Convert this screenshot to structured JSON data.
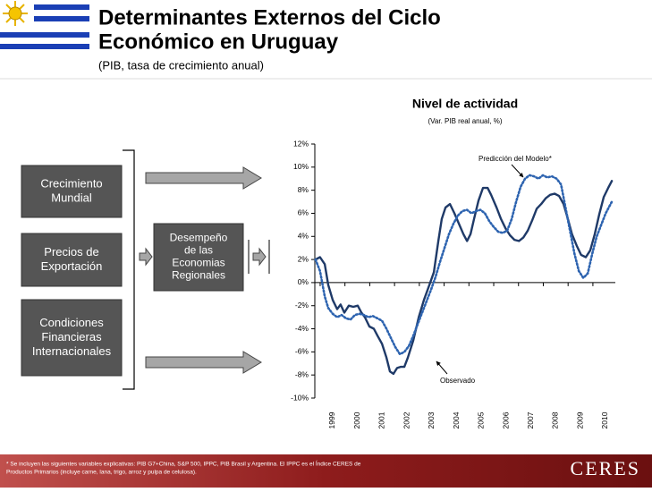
{
  "header": {
    "title_lines": [
      "Determinantes Externos del Ciclo",
      "Económico en Uruguay"
    ],
    "subtitle": "(PIB, tasa de crecimiento anual)"
  },
  "diagram": {
    "boxes": [
      [
        "Crecimiento",
        "Mundial"
      ],
      [
        "Precios de",
        "Exportación"
      ],
      [
        "Condiciones",
        "Financieras",
        "Internacionales"
      ]
    ],
    "center": [
      "Desempeño",
      "de las",
      "Economias",
      "Regionales"
    ]
  },
  "footer": {
    "footnote_lines": [
      "* Se incluyen las siguientes variables explicativas: PIB G7+China, S&P 500, IPPC, PIB Brasil y Argentina. El IPPC es el Índice CERES de",
      "Productos Primarios (incluye carne, lana, trigo, arroz y pulpa de celulosa)."
    ],
    "logo": "CERES"
  },
  "chart_data": {
    "type": "line",
    "title": "Nivel de actividad",
    "subtitle": "(Var. PIB real anual, %)",
    "xlim": [
      1998.28,
      2010.4
    ],
    "xticks": [
      1999,
      2000,
      2001,
      2002,
      2003,
      2004,
      2005,
      2006,
      2007,
      2008,
      2009,
      2010
    ],
    "ylim": [
      -10,
      12
    ],
    "yticks": [
      {
        "value": -10,
        "label": "-10%"
      },
      {
        "value": -8,
        "label": "-8%"
      },
      {
        "value": -6,
        "label": "-6%"
      },
      {
        "value": -4,
        "label": "-4%"
      },
      {
        "value": -2,
        "label": "-2%"
      },
      {
        "value": 0,
        "label": "0%"
      },
      {
        "value": 2,
        "label": "2%"
      },
      {
        "value": 4,
        "label": "4%"
      },
      {
        "value": 6,
        "label": "6%"
      },
      {
        "value": 8,
        "label": "8%"
      },
      {
        "value": 10,
        "label": "10%"
      },
      {
        "value": 12,
        "label": "12%"
      }
    ],
    "annotations": [
      "Predicción del Modelo*",
      "Observado"
    ],
    "series": [
      {
        "name": "Observado",
        "color": "#1f3a68",
        "line_style": "solid",
        "x": [
          1998.31,
          1998.49,
          1998.68,
          1998.82,
          1999.0,
          1999.18,
          1999.32,
          1999.47,
          1999.65,
          1999.83,
          2000.01,
          2000.16,
          2000.3,
          2000.48,
          2000.66,
          2000.81,
          2000.99,
          2001.17,
          2001.31,
          2001.45,
          2001.6,
          2001.74,
          2001.89,
          2002.03,
          2002.25,
          2002.47,
          2002.68,
          2002.9,
          2003.08,
          2003.26,
          2003.4,
          2003.55,
          2003.73,
          2003.91,
          2004.09,
          2004.27,
          2004.42,
          2004.56,
          2004.7,
          2004.88,
          2005.06,
          2005.25,
          2005.39,
          2005.61,
          2005.79,
          2005.97,
          2006.15,
          2006.33,
          2006.51,
          2006.69,
          2006.87,
          2007.05,
          2007.23,
          2007.41,
          2007.59,
          2007.77,
          2007.95,
          2008.13,
          2008.31,
          2008.49,
          2008.65,
          2008.84,
          2009.02,
          2009.21,
          2009.39,
          2009.57,
          2009.75,
          2009.93,
          2010.11,
          2010.26
        ],
        "values": [
          2.0,
          2.2,
          1.6,
          -0.2,
          -1.5,
          -2.3,
          -1.9,
          -2.6,
          -2.0,
          -2.1,
          -2.0,
          -2.6,
          -3.0,
          -3.8,
          -4.0,
          -4.6,
          -5.3,
          -6.5,
          -7.7,
          -7.9,
          -7.4,
          -7.3,
          -7.3,
          -6.5,
          -5.0,
          -3.0,
          -1.5,
          -0.2,
          0.9,
          3.6,
          5.5,
          6.5,
          6.8,
          6.0,
          5.1,
          4.2,
          3.6,
          4.2,
          5.5,
          7.1,
          8.2,
          8.2,
          7.6,
          6.5,
          5.5,
          4.7,
          4.1,
          3.7,
          3.6,
          3.9,
          4.5,
          5.4,
          6.4,
          6.8,
          7.3,
          7.6,
          7.7,
          7.5,
          6.8,
          5.5,
          4.2,
          3.2,
          2.4,
          2.2,
          2.8,
          4.2,
          5.9,
          7.4,
          8.2,
          8.8
        ]
      },
      {
        "name": "Predicción del Modelo*",
        "color": "#2e64b0",
        "line_style": "dotted",
        "x": [
          1998.31,
          1998.49,
          1998.68,
          1998.82,
          1999.0,
          1999.18,
          1999.36,
          1999.54,
          1999.72,
          1999.9,
          2000.08,
          2000.26,
          2000.44,
          2000.62,
          2000.81,
          2000.99,
          2001.17,
          2001.35,
          2001.53,
          2001.71,
          2001.89,
          2002.07,
          2002.25,
          2002.43,
          2002.61,
          2002.79,
          2002.97,
          2003.15,
          2003.33,
          2003.51,
          2003.69,
          2003.87,
          2004.05,
          2004.23,
          2004.42,
          2004.6,
          2004.78,
          2004.96,
          2005.14,
          2005.32,
          2005.5,
          2005.68,
          2005.86,
          2006.04,
          2006.22,
          2006.4,
          2006.58,
          2006.76,
          2006.94,
          2007.12,
          2007.3,
          2007.48,
          2007.66,
          2007.84,
          2008.03,
          2008.21,
          2008.39,
          2008.57,
          2008.75,
          2008.93,
          2009.11,
          2009.29,
          2009.47,
          2009.65,
          2009.83,
          2010.01,
          2010.26
        ],
        "values": [
          2.0,
          1.0,
          -1.2,
          -2.2,
          -2.7,
          -3.0,
          -2.8,
          -3.1,
          -3.2,
          -2.8,
          -2.7,
          -2.8,
          -3.0,
          -2.9,
          -3.1,
          -3.3,
          -4.0,
          -4.8,
          -5.6,
          -6.2,
          -6.0,
          -5.5,
          -4.6,
          -3.6,
          -2.6,
          -1.6,
          -0.6,
          0.5,
          1.8,
          3.0,
          4.2,
          5.1,
          5.8,
          6.2,
          6.3,
          6.0,
          6.2,
          6.3,
          6.0,
          5.3,
          4.8,
          4.4,
          4.3,
          4.5,
          5.5,
          7.0,
          8.3,
          9.0,
          9.3,
          9.2,
          9.0,
          9.3,
          9.1,
          9.2,
          9.0,
          8.5,
          6.5,
          4.5,
          2.5,
          1.0,
          0.4,
          0.8,
          2.5,
          4.0,
          5.0,
          6.0,
          7.0
        ]
      }
    ]
  }
}
